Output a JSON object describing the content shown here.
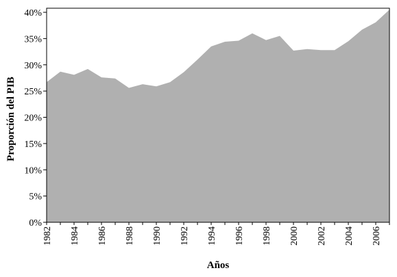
{
  "chart_data": {
    "type": "area",
    "xlabel": "Años",
    "ylabel": "Proporción del PIB",
    "x": [
      1982,
      1983,
      1984,
      1985,
      1986,
      1987,
      1988,
      1989,
      1990,
      1991,
      1992,
      1993,
      1994,
      1995,
      1996,
      1997,
      1998,
      1999,
      2000,
      2001,
      2002,
      2003,
      2004,
      2005,
      2006,
      2007
    ],
    "values": [
      26.7,
      28.7,
      28.1,
      29.2,
      27.6,
      27.4,
      25.6,
      26.3,
      25.9,
      26.7,
      28.6,
      31.0,
      33.5,
      34.4,
      34.6,
      36.0,
      34.7,
      35.5,
      32.7,
      33.0,
      32.8,
      32.8,
      34.5,
      36.7,
      38.1,
      40.5
    ],
    "ylim": [
      0,
      40
    ],
    "yticks": [
      "0%",
      "5%",
      "10%",
      "15%",
      "20%",
      "25%",
      "30%",
      "35%",
      "40%"
    ],
    "ytick_values": [
      0,
      5,
      10,
      15,
      20,
      25,
      30,
      35,
      40
    ],
    "xticks": [
      "1982",
      "1984",
      "1986",
      "1988",
      "1990",
      "1992",
      "1994",
      "1996",
      "1998",
      "2000",
      "2002",
      "2004",
      "2006"
    ],
    "xtick_values": [
      1982,
      1984,
      1986,
      1988,
      1990,
      1992,
      1994,
      1996,
      1998,
      2000,
      2002,
      2004,
      2006
    ],
    "fill_color": "#b0b0b0",
    "grid": false,
    "legend": "none"
  }
}
